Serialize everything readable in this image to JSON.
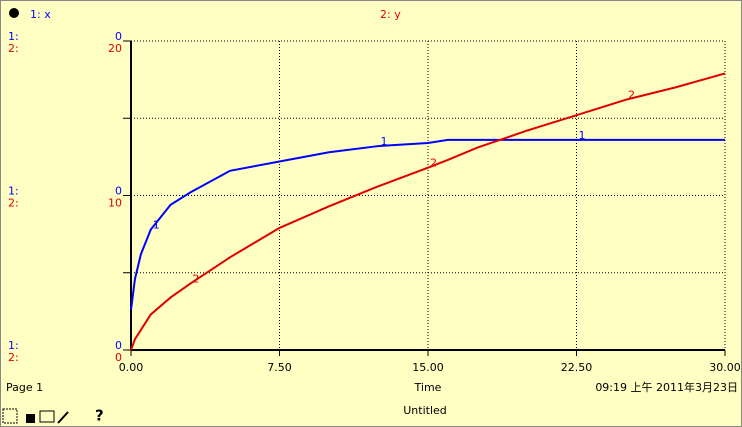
{
  "chart_data": {
    "type": "line",
    "xlabel": "Time",
    "axis_prefixes": [
      "1:",
      "2:"
    ],
    "x": [
      0,
      0.2,
      0.5,
      1,
      2,
      3,
      5,
      7.5,
      10,
      12.5,
      15,
      16,
      17.5,
      20,
      22.5,
      25,
      27.5,
      30
    ],
    "series": [
      {
        "name": "1: x",
        "marker": "1",
        "color": "#0000ff",
        "axis": "y2",
        "values": [
          0.13,
          0.23,
          0.31,
          0.39,
          0.47,
          0.51,
          0.58,
          0.61,
          0.64,
          0.66,
          0.67,
          0.68,
          0.68,
          0.68,
          0.68,
          0.68,
          0.68,
          0.68
        ]
      },
      {
        "name": "2: y",
        "marker": "2",
        "color": "#e00000",
        "values": [
          0,
          0.7,
          1.3,
          2.3,
          3.4,
          4.3,
          6.0,
          7.9,
          9.3,
          10.6,
          11.8,
          12.3,
          13.1,
          14.2,
          15.2,
          16.2,
          17.0,
          17.9
        ]
      }
    ],
    "xlim": [
      0,
      30
    ],
    "xticks": [
      {
        "value": 0,
        "label": "0.00"
      },
      {
        "value": 7.5,
        "label": "7.50"
      },
      {
        "value": 15,
        "label": "15.00"
      },
      {
        "value": 22.5,
        "label": "22.50"
      },
      {
        "value": 30,
        "label": "30.00"
      }
    ],
    "ylim": [
      0,
      20
    ],
    "yticks": [
      0,
      10,
      20
    ],
    "minor_yticks": [
      5,
      15
    ],
    "y2lim": [
      0,
      1
    ],
    "y2ticks": [
      {
        "value": 0,
        "label": "0"
      },
      {
        "value": 0.5,
        "label": "0"
      },
      {
        "value": 1,
        "label": "0"
      }
    ],
    "grid": true
  },
  "footer": {
    "page": "Page 1",
    "timestamp": "09:19 上午   2011年3月23日",
    "document": "Untitled",
    "help": "?"
  }
}
